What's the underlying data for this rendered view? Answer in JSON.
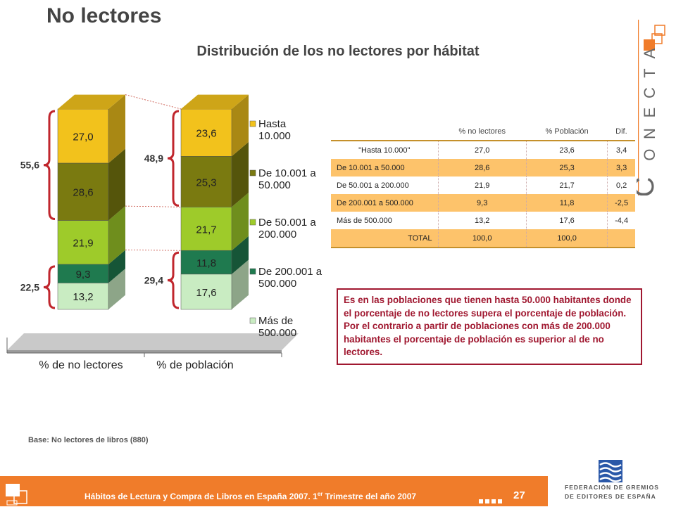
{
  "page": {
    "title": "No lectores",
    "subtitle": "Distribución de los no lectores por hábitat",
    "base_note": "Base: No lectores de libros (880)",
    "page_number": "27",
    "footer_text_main": "Hábitos de Lectura y Compra de Libros en España 2007. 1",
    "footer_text_sup": "er",
    "footer_text_end": " Trimestre del año 2007",
    "federation_line1": "FEDERACIÓN DE GREMIOS",
    "federation_line2": "DE EDITORES DE ESPAÑA",
    "brand_letters": [
      "C",
      "O",
      "N",
      "E",
      "C",
      "T",
      "A"
    ],
    "note": "Es en las poblaciones que tienen hasta  50.000 habitantes donde el porcentaje de no lectores supera el porcentaje de población. Por el contrario a partir de poblaciones con más de 200.000 habitantes el porcentaje de población es superior al de no lectores."
  },
  "chart_data": {
    "type": "bar",
    "stacked": true,
    "categories": [
      "% de no lectores",
      "% de población"
    ],
    "series": [
      {
        "name": "Más de 500.000",
        "values": [
          13.2,
          17.6
        ],
        "color": "#c9ecc2"
      },
      {
        "name": "De 200.001 a 500.000",
        "values": [
          9.3,
          11.8
        ],
        "color": "#1f7a4f"
      },
      {
        "name": "De 50.001 a 200.000",
        "values": [
          21.9,
          21.7
        ],
        "color": "#9ecb2a"
      },
      {
        "name": "De 10.001 a 50.000",
        "values": [
          28.6,
          25.3
        ],
        "color": "#7a7a10"
      },
      {
        "name": "Hasta 10.000",
        "values": [
          27.0,
          23.6
        ],
        "color": "#f2c21c"
      }
    ],
    "value_labels": [
      [
        "13,2",
        "9,3",
        "21,9",
        "28,6",
        "27,0"
      ],
      [
        "17,6",
        "11,8",
        "21,7",
        "25,3",
        "23,6"
      ]
    ],
    "legend_labels": [
      [
        "Hasta",
        "10.000"
      ],
      [
        "De 10.001 a",
        "50.000"
      ],
      [
        "De 50.001 a",
        "200.000"
      ],
      [
        "De 200.001 a",
        "500.000"
      ],
      [
        "Más de",
        "500.000"
      ]
    ],
    "brace_labels": {
      "no_lectores_top": "55,6",
      "no_lectores_bottom": "22,5",
      "poblacion_top": "48,9",
      "poblacion_bottom": "29,4"
    },
    "ylim": [
      0,
      100
    ],
    "legend_position": "right"
  },
  "table": {
    "headers": [
      "",
      "% no lectores",
      "% Población",
      "Dif."
    ],
    "rows": [
      [
        "\"Hasta 10.000\"",
        "27,0",
        "23,6",
        "3,4"
      ],
      [
        "De 10.001 a 50.000",
        "28,6",
        "25,3",
        "3,3"
      ],
      [
        "De 50.001 a 200.000",
        "21,9",
        "21,7",
        "0,2"
      ],
      [
        "De 200.001 a 500.000",
        "9,3",
        "11,8",
        "-2,5"
      ],
      [
        "Más de 500.000",
        "13,2",
        "17,6",
        "-4,4"
      ]
    ],
    "total": [
      "TOTAL",
      "100,0",
      "100,0",
      ""
    ]
  }
}
